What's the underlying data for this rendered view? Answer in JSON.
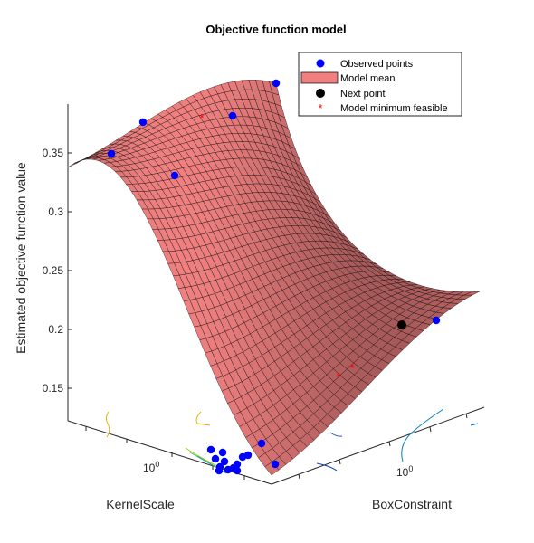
{
  "chart_data": {
    "type": "surface",
    "title": "Objective function model",
    "xlabel": "KernelScale",
    "ylabel": "BoxConstraint",
    "zlabel": "Estimated objective function value",
    "z_ticks": [
      0.15,
      0.2,
      0.25,
      0.3,
      0.35
    ],
    "x_tick_labels": [
      "10^0"
    ],
    "y_tick_labels": [
      "10^0"
    ],
    "zlim": [
      0.12,
      0.38
    ],
    "grid": false,
    "legend_position": "top-right",
    "legend": [
      "Observed points",
      "Model mean",
      "Next point",
      "Model minimum feasible"
    ],
    "colors": {
      "surface_fill": "#f08080",
      "surface_edge": "#000000",
      "observed": "#0000ff",
      "next": "#000000",
      "model_min": "#ff0000"
    }
  }
}
